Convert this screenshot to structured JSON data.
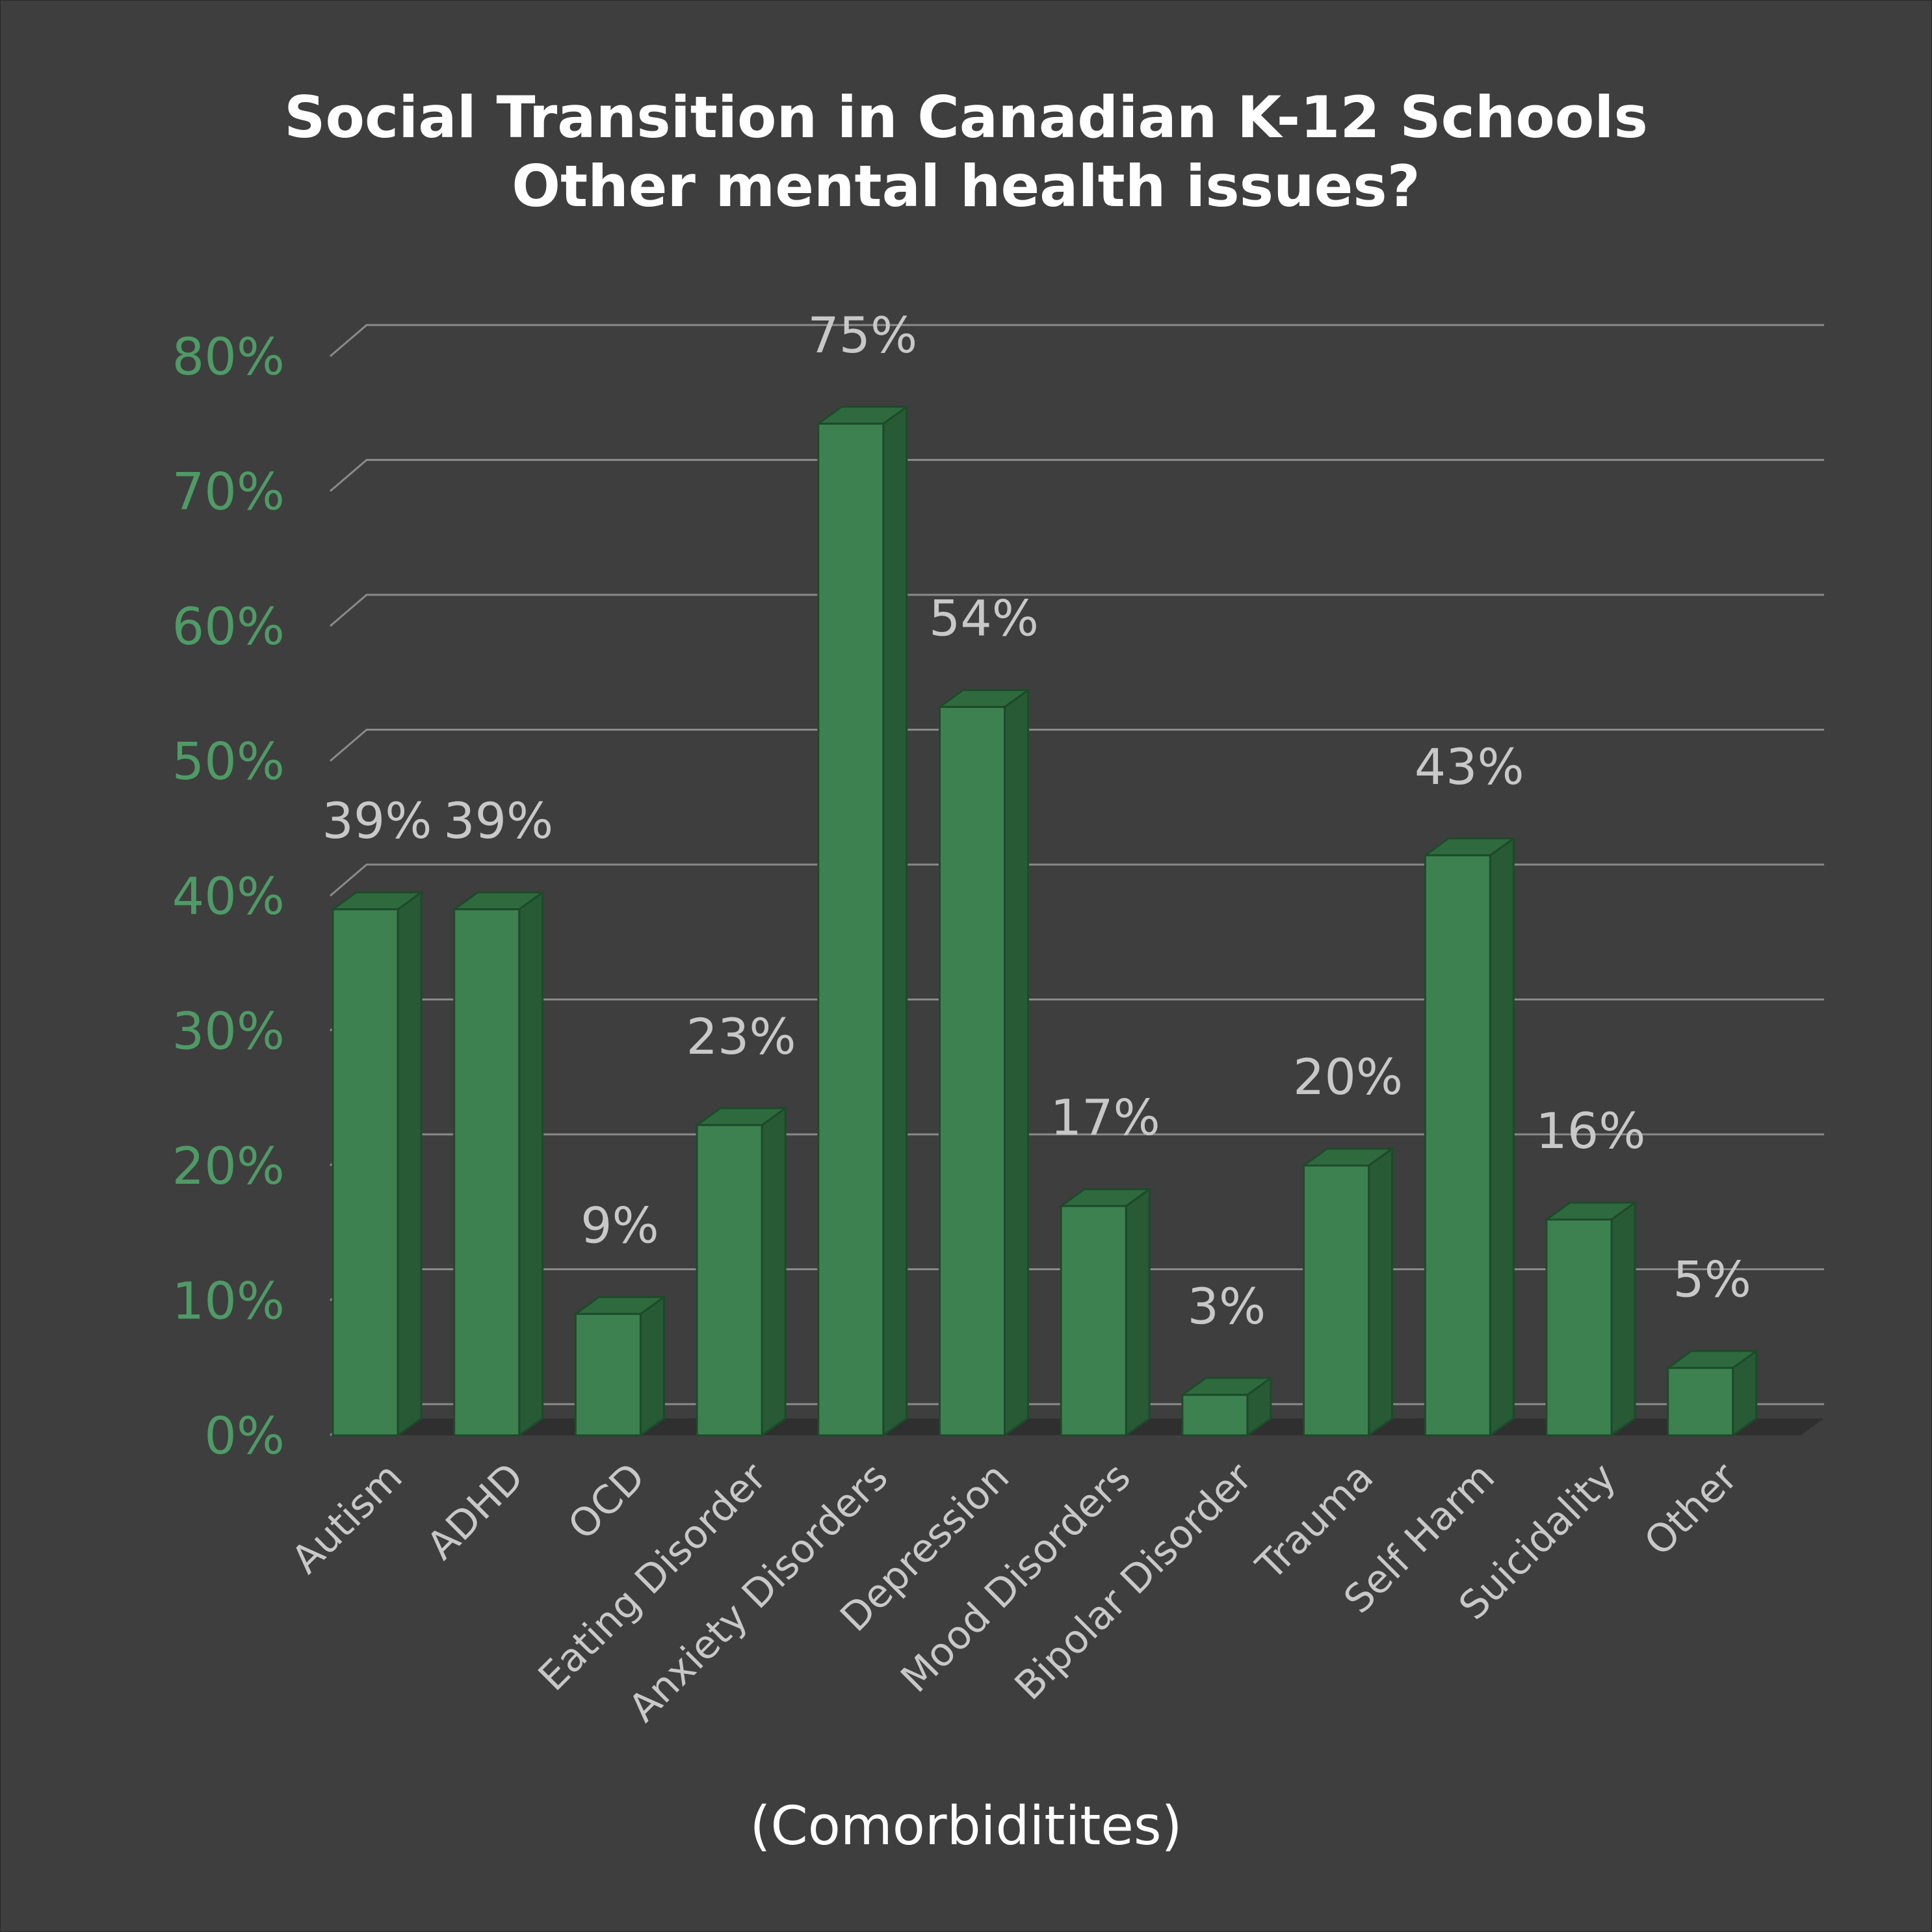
{
  "chart_data": {
    "type": "bar",
    "title": "Social Transition in Canadian K-12 Schools",
    "subtitle": "Other mental health issues?",
    "xlabel": "(Comorbiditites)",
    "ylabel": "",
    "ylim": [
      0,
      80
    ],
    "yticks": [
      "0%",
      "10%",
      "20%",
      "30%",
      "40%",
      "50%",
      "60%",
      "70%",
      "80%"
    ],
    "grid": true,
    "style": "3d-column",
    "categories": [
      "Autism",
      "ADHD",
      "OCD",
      "Eating Disorder",
      "Anxiety Disorders",
      "Depression",
      "Mood Disorders",
      "Bipolar Disorder",
      "Trauma",
      "Self Harm",
      "Suicidality",
      "Other"
    ],
    "values": [
      39,
      39,
      9,
      23,
      75,
      54,
      17,
      3,
      20,
      43,
      16,
      5
    ],
    "data_labels": [
      "39%",
      "39%",
      "9%",
      "23%",
      "75%",
      "54%",
      "17%",
      "3%",
      "20%",
      "43%",
      "16%",
      "5%"
    ],
    "colors": {
      "background": "#3e3e3e",
      "bar_front": "#3d8150",
      "bar_side": "#275a35",
      "bar_top": "#2e6a3e",
      "axis_ticks": "#4f9a66",
      "labels": "#c8c8c8",
      "grid": "#8a8a8a"
    }
  }
}
